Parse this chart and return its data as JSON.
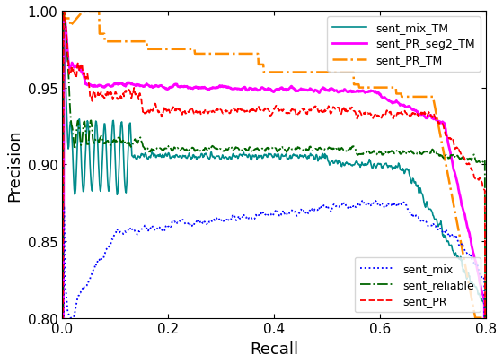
{
  "title": "",
  "xlabel": "Recall",
  "ylabel": "Precision",
  "xlim": [
    0,
    0.8
  ],
  "ylim": [
    0.8,
    1.0
  ],
  "yticks": [
    0.8,
    0.85,
    0.9,
    0.95,
    1.0
  ],
  "xticks": [
    0.0,
    0.2,
    0.4,
    0.6,
    0.8
  ],
  "figsize": [
    5.6,
    4.06
  ],
  "dpi": 100,
  "lines": {
    "sent_mix_TM": {
      "color": "#008B8B",
      "linestyle": "-",
      "linewidth": 1.2
    },
    "sent_PR_seg2_TM": {
      "color": "#FF00FF",
      "linestyle": "-",
      "linewidth": 2.0
    },
    "sent_PR_TM": {
      "color": "#FF8C00",
      "linestyle": "-.",
      "linewidth": 1.8
    },
    "sent_mix": {
      "color": "#0000FF",
      "linestyle": ":",
      "linewidth": 1.3
    },
    "sent_reliable": {
      "color": "#006400",
      "linestyle": "-.",
      "linewidth": 1.3
    },
    "sent_PR": {
      "color": "#FF0000",
      "linestyle": "--",
      "linewidth": 1.3
    }
  }
}
